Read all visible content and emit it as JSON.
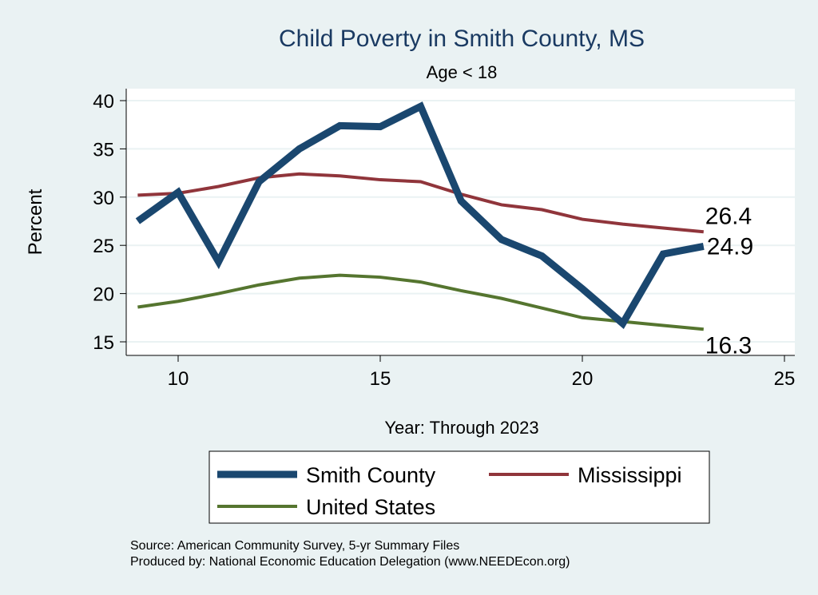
{
  "chart_data": {
    "type": "line",
    "title": "Child Poverty in Smith County, MS",
    "subtitle": "Age < 18",
    "xlabel": "Year: Through 2023",
    "ylabel": "Percent",
    "xlim": [
      8.7,
      25.3
    ],
    "ylim": [
      13.6,
      41.2
    ],
    "xticks": [
      10,
      15,
      20,
      25
    ],
    "yticks": [
      15,
      20,
      25,
      30,
      35,
      40
    ],
    "grid": true,
    "x": [
      9,
      10,
      11,
      12,
      13,
      14,
      15,
      16,
      17,
      18,
      19,
      20,
      21,
      22,
      23
    ],
    "series": [
      {
        "name": "Smith County",
        "color": "#1a476f",
        "values": [
          27.5,
          30.5,
          23.3,
          31.6,
          35.0,
          37.4,
          37.3,
          39.4,
          29.6,
          25.6,
          23.9,
          20.5,
          16.9,
          24.1,
          24.9
        ],
        "end_label": "24.9"
      },
      {
        "name": "Mississippi",
        "color": "#90353b",
        "values": [
          30.2,
          30.4,
          31.1,
          32.0,
          32.4,
          32.2,
          31.8,
          31.6,
          30.3,
          29.2,
          28.7,
          27.7,
          27.2,
          26.8,
          26.4
        ],
        "end_label": "26.4"
      },
      {
        "name": "United States",
        "color": "#55752f",
        "values": [
          18.6,
          19.2,
          20.0,
          20.9,
          21.6,
          21.9,
          21.7,
          21.2,
          20.3,
          19.5,
          18.5,
          17.5,
          17.1,
          16.7,
          16.3
        ],
        "end_label": "16.3"
      }
    ],
    "legend_position": "bottom",
    "notes": [
      "Source: American Community Survey, 5-yr Summary Files",
      "Produced by: National Economic Education Delegation (www.NEEDEcon.org)"
    ]
  }
}
